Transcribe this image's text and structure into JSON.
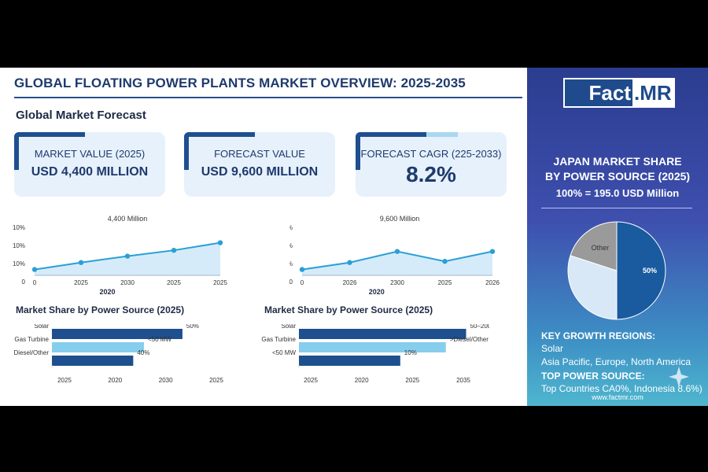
{
  "header": {
    "title": "GLOBAL FLOATING POWER PLANTS MARKET OVERVIEW: 2025-2035",
    "subtitle": "Global Market Forecast"
  },
  "kpis": [
    {
      "label": "MARKET VALUE (2025)",
      "value": "USD 4,400 MILLION"
    },
    {
      "label": "FORECAST VALUE",
      "value": "USD 9,600 MILLION"
    },
    {
      "label": "FORECAST CAGR (225-2033)",
      "value": "8.2%"
    }
  ],
  "brand": {
    "logo_left": "Fact",
    "logo_right": ".MR",
    "website": "www.factmr.com"
  },
  "panel": {
    "title_line1": "JAPAN MARKET SHARE",
    "title_line2": "BY POWER SOURCE (2025)",
    "total": "100% = 195.0 USD Million",
    "growth_head": "KEY GROWTH REGIONS:",
    "growth_line1": "Solar",
    "growth_line2": "Asia Pacific, Europe, North America",
    "power_head": "TOP POWER SOURCE:",
    "power_line": "Top Countries CA0%, Indonesia 8.6%)"
  },
  "colors": {
    "navy": "#1e3a6e",
    "line": "#2a9fd6",
    "area": "#d6ebf9",
    "bar_dark": "#1e4f8f",
    "bar_light": "#86cdee",
    "pie_dark": "#1a5a9e",
    "pie_light": "#d8e8f6",
    "pie_gray": "#9a9a9a"
  },
  "chart_data": [
    {
      "type": "line",
      "annotation": "4,400 Million",
      "x": [
        "0",
        "2025",
        "2030",
        "2025",
        "2025"
      ],
      "y_tick_labels": [
        "10%",
        "10%",
        "10%",
        "0"
      ],
      "x_axis_note": "2020",
      "ylim": [
        0,
        100
      ],
      "values": [
        10,
        22,
        33,
        43,
        56
      ]
    },
    {
      "type": "line",
      "annotation": "9,600 Million",
      "x": [
        "0",
        "2026",
        "2300",
        "2025",
        "2026"
      ],
      "y_tick_labels": [
        "10%",
        "10%",
        "10%",
        "0"
      ],
      "x_axis_note": "2020",
      "ylim": [
        0,
        100
      ],
      "values": [
        10,
        22,
        41,
        24,
        41
      ]
    },
    {
      "type": "bar",
      "title": "Market Share by Power Source (2025)",
      "categories": [
        "Solar",
        "Gas Turbine",
        "Diesel/Other"
      ],
      "values": [
        61,
        43,
        38
      ],
      "bar_labels": [
        "50%",
        "<50 MW",
        "40%"
      ],
      "x_tick_labels": [
        "2025",
        "2020",
        "2030",
        "2025"
      ],
      "xlim": [
        0,
        100
      ]
    },
    {
      "type": "bar",
      "title": "Market Share by Power Source (2025)",
      "categories": [
        "Solar",
        "Gas Turbine",
        "<50 MW"
      ],
      "values": [
        66,
        58,
        40
      ],
      "bar_labels": [
        "50–200 MW",
        ">Diesel/Other",
        "10%"
      ],
      "x_tick_labels": [
        "2025",
        "2020",
        "2025",
        "2035"
      ],
      "xlim": [
        0,
        100
      ]
    },
    {
      "type": "pie",
      "slices": [
        {
          "label": "50%",
          "value": 50
        },
        {
          "label": "",
          "value": 30
        },
        {
          "label": "Other",
          "value": 20
        }
      ]
    }
  ]
}
